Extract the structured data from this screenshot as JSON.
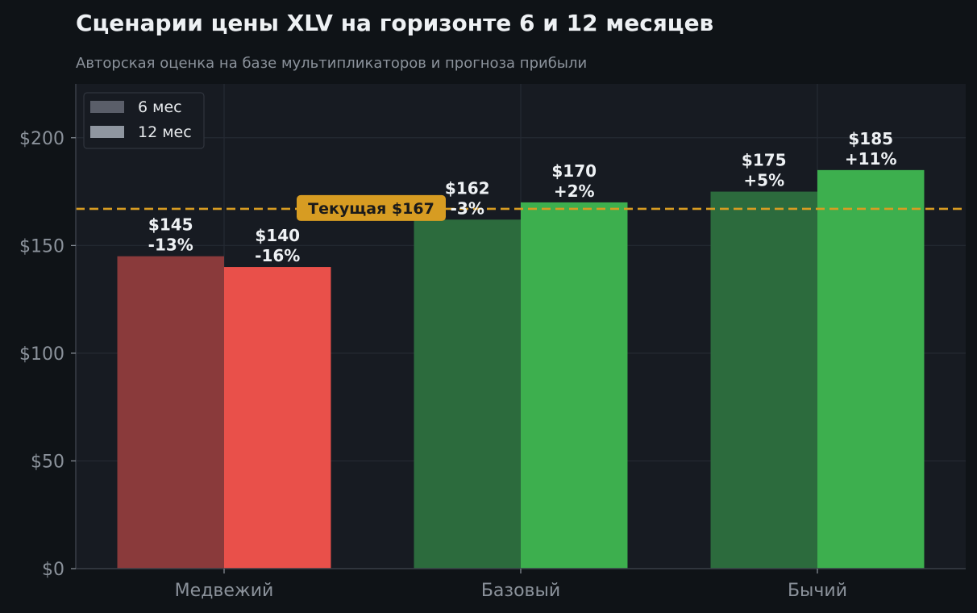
{
  "chart_data": {
    "type": "bar",
    "title": "Сценарии цены XLV на горизонте 6 и 12 месяцев",
    "subtitle": "Авторская оценка на базе мультипликаторов и прогноза прибыли",
    "categories": [
      "Медвежий",
      "Базовый",
      "Бычий"
    ],
    "series": [
      {
        "name": "6 мес",
        "values": [
          145,
          162,
          175
        ],
        "labels": [
          "$145\n-13%",
          "$162\n-3%",
          "$175\n+5%"
        ],
        "colors": [
          "#8a3a3b",
          "#2c6b3d",
          "#2c6b3d"
        ]
      },
      {
        "name": "12 мес",
        "values": [
          140,
          170,
          185
        ],
        "labels": [
          "$140\n-16%",
          "$170\n+2%",
          "$185\n+11%"
        ],
        "colors": [
          "#e9504a",
          "#3daf4e",
          "#3daf4e"
        ]
      }
    ],
    "reference_line": {
      "value": 167,
      "label": "Текущая $167",
      "color": "#d79c22"
    },
    "ylim": [
      0,
      225
    ],
    "yticks": [
      0,
      50,
      100,
      150,
      200
    ],
    "ytick_labels": [
      "$0",
      "$50",
      "$100",
      "$150",
      "$200"
    ],
    "xlabel": "",
    "ylabel": "",
    "grid": true,
    "legend_position": "top-left",
    "legend_swatch_colors": [
      "#5a5e69",
      "#8f96a0"
    ]
  }
}
